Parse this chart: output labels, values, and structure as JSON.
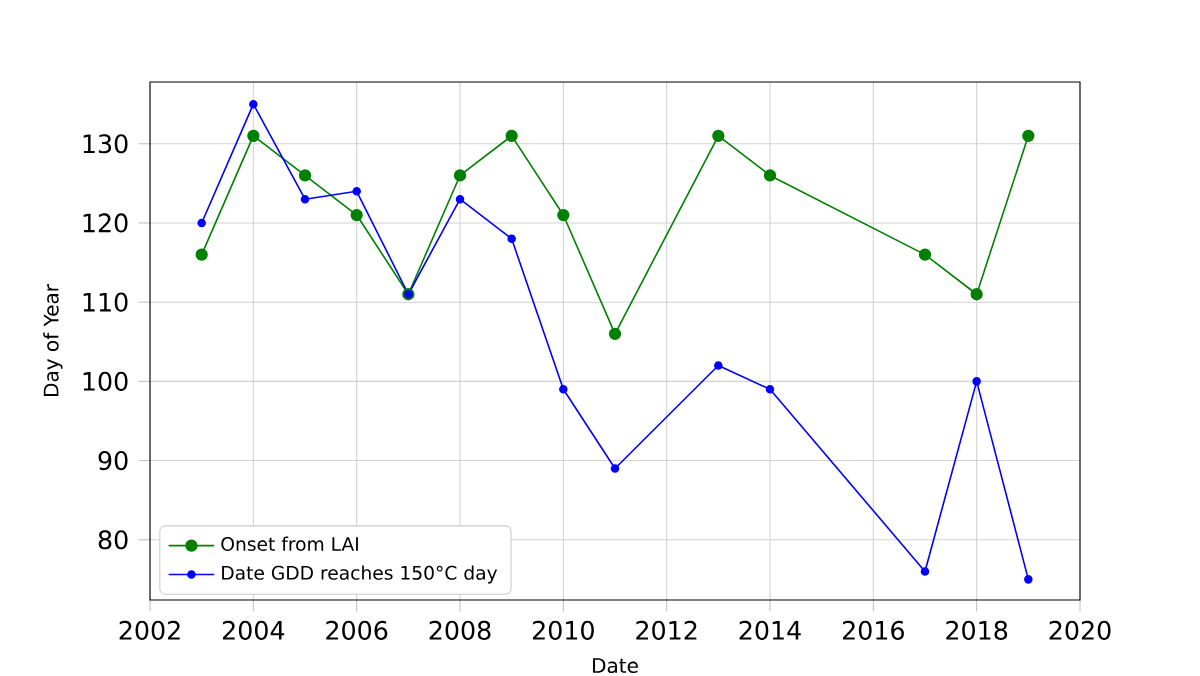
{
  "chart_data": {
    "type": "line",
    "xlabel": "Date",
    "ylabel": "Day of Year",
    "xlim": [
      2002,
      2020
    ],
    "xticks": [
      2002,
      2004,
      2006,
      2008,
      2010,
      2012,
      2014,
      2016,
      2018,
      2020
    ],
    "ylim": [
      72.4,
      137.8
    ],
    "yticks": [
      80,
      90,
      100,
      110,
      120,
      130
    ],
    "grid": true,
    "legend": "bottom left",
    "marker": "circle",
    "line_style": "solid",
    "series": [
      {
        "name": "Onset from LAI",
        "color": "#008000",
        "x": [
          2003,
          2004,
          2005,
          2006,
          2007,
          2008,
          2009,
          2010,
          2011,
          2013,
          2014,
          2017,
          2018,
          2019
        ],
        "values": [
          116,
          131,
          126,
          121,
          111,
          126,
          131,
          121,
          106,
          131,
          126,
          116,
          111,
          131
        ]
      },
      {
        "name": "Date GDD reaches 150°C day",
        "color": "#0000ff",
        "x": [
          2003,
          2004,
          2005,
          2006,
          2007,
          2008,
          2009,
          2010,
          2011,
          2013,
          2014,
          2017,
          2018,
          2019
        ],
        "values": [
          120,
          135,
          123,
          124,
          111,
          123,
          118,
          99,
          89,
          102,
          99,
          76,
          100,
          75
        ]
      }
    ]
  }
}
